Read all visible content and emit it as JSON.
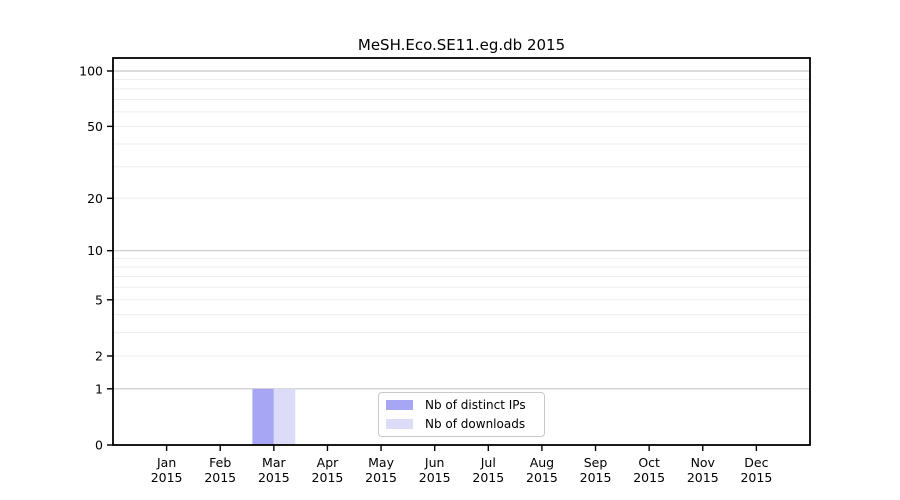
{
  "chart_data": {
    "type": "bar",
    "title": "MeSH.Eco.SE11.eg.db 2015",
    "categories": [
      "Jan",
      "Feb",
      "Mar",
      "Apr",
      "May",
      "Jun",
      "Jul",
      "Aug",
      "Sep",
      "Oct",
      "Nov",
      "Dec"
    ],
    "x_sublabel": "2015",
    "series": [
      {
        "name": "Nb of distinct IPs",
        "color": "#a6a6f4",
        "values": [
          0,
          0,
          1,
          0,
          0,
          0,
          0,
          0,
          0,
          0,
          0,
          0
        ]
      },
      {
        "name": "Nb of downloads",
        "color": "#dcdcf8",
        "values": [
          0,
          0,
          1,
          0,
          0,
          0,
          0,
          0,
          0,
          0,
          0,
          0
        ]
      }
    ],
    "y_scale": "log10(1+x)",
    "y_ticks": [
      0,
      1,
      2,
      5,
      10,
      20,
      50,
      100
    ],
    "y_major_gridlines": [
      1,
      10,
      100
    ],
    "y_minor_gridlines": [
      2,
      3,
      4,
      5,
      6,
      7,
      8,
      9,
      20,
      30,
      40,
      50,
      60,
      70,
      80,
      90
    ],
    "ylim": [
      0,
      118
    ],
    "grid": "horizontal",
    "legend_position": "lower center",
    "colors": {
      "major_grid": "#c8c8c8",
      "minor_grid": "#ededed",
      "axis": "#000000",
      "text": "#000000"
    }
  }
}
